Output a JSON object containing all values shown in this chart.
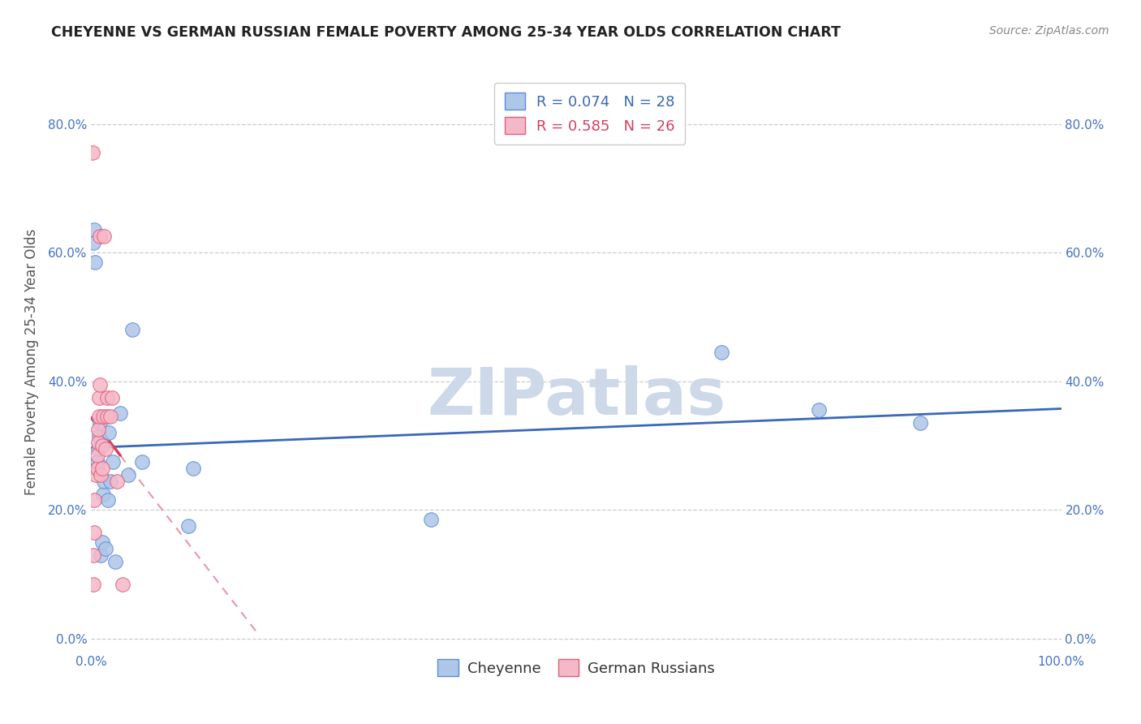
{
  "title": "CHEYENNE VS GERMAN RUSSIAN FEMALE POVERTY AMONG 25-34 YEAR OLDS CORRELATION CHART",
  "source": "Source: ZipAtlas.com",
  "ylabel": "Female Poverty Among 25-34 Year Olds",
  "xlim": [
    0.0,
    1.0
  ],
  "ylim": [
    -0.02,
    0.88
  ],
  "xticks": [
    0.0,
    0.1,
    0.2,
    0.3,
    0.4,
    0.5,
    0.6,
    0.7,
    0.8,
    0.9,
    1.0
  ],
  "yticks": [
    0.0,
    0.2,
    0.4,
    0.6,
    0.8
  ],
  "ytick_labels": [
    "0.0%",
    "20.0%",
    "40.0%",
    "60.0%",
    "80.0%"
  ],
  "xtick_labels": [
    "0.0%",
    "",
    "",
    "",
    "",
    "",
    "",
    "",
    "",
    "",
    "100.0%"
  ],
  "cheyenne_fill": "#aec6e8",
  "cheyenne_edge": "#5b8dd9",
  "german_fill": "#f5b8c8",
  "german_edge": "#e0607a",
  "cheyenne_line_color": "#3a68b8",
  "german_line_color": "#d44060",
  "cheyenne_R": 0.074,
  "cheyenne_N": 28,
  "german_R": 0.585,
  "german_N": 26,
  "legend_r_color_cheyenne": "#3a68b8",
  "legend_n_color_cheyenne": "#3a68b8",
  "legend_r_color_german": "#d44060",
  "legend_n_color_german": "#d44060",
  "legend_label_cheyenne": "Cheyenne",
  "legend_label_german": "German Russians",
  "cheyenne_x": [
    0.002,
    0.003,
    0.004,
    0.005,
    0.006,
    0.007,
    0.008,
    0.009,
    0.01,
    0.011,
    0.012,
    0.013,
    0.015,
    0.017,
    0.018,
    0.02,
    0.022,
    0.025,
    0.03,
    0.038,
    0.042,
    0.052,
    0.1,
    0.105,
    0.35,
    0.65,
    0.75,
    0.855
  ],
  "cheyenne_y": [
    0.615,
    0.635,
    0.585,
    0.265,
    0.275,
    0.295,
    0.315,
    0.335,
    0.13,
    0.15,
    0.225,
    0.245,
    0.14,
    0.215,
    0.32,
    0.245,
    0.275,
    0.12,
    0.35,
    0.255,
    0.48,
    0.275,
    0.175,
    0.265,
    0.185,
    0.445,
    0.355,
    0.335
  ],
  "german_x": [
    0.001,
    0.002,
    0.002,
    0.003,
    0.003,
    0.005,
    0.006,
    0.006,
    0.007,
    0.007,
    0.008,
    0.008,
    0.009,
    0.009,
    0.01,
    0.011,
    0.011,
    0.012,
    0.013,
    0.015,
    0.016,
    0.016,
    0.02,
    0.021,
    0.026,
    0.032
  ],
  "german_y": [
    0.755,
    0.085,
    0.13,
    0.165,
    0.215,
    0.255,
    0.265,
    0.285,
    0.305,
    0.325,
    0.345,
    0.375,
    0.395,
    0.625,
    0.255,
    0.265,
    0.3,
    0.345,
    0.625,
    0.295,
    0.345,
    0.375,
    0.345,
    0.375,
    0.245,
    0.085
  ],
  "watermark_text": "ZIPatlas",
  "watermark_color": "#cdd8e8",
  "background_color": "#ffffff",
  "grid_color": "#cccccc",
  "title_color": "#222222",
  "axis_label_color": "#555555",
  "tick_color": "#4472c4",
  "source_color": "#888888"
}
